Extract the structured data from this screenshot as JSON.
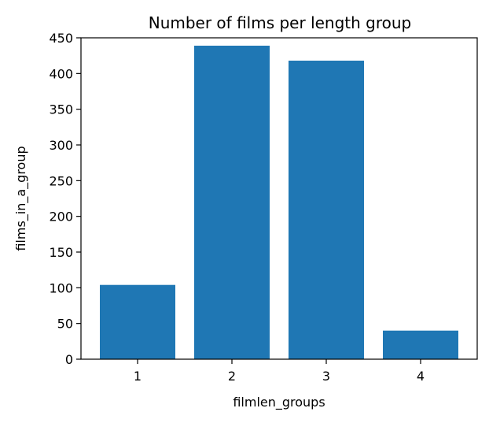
{
  "chart_data": {
    "type": "bar",
    "title": "Number of films per length group",
    "xlabel": "filmlen_groups",
    "ylabel": "films_in_a_group",
    "categories": [
      "1",
      "2",
      "3",
      "4"
    ],
    "values": [
      104,
      439,
      418,
      40
    ],
    "ylim": [
      0,
      450
    ],
    "yticks": [
      0,
      50,
      100,
      150,
      200,
      250,
      300,
      350,
      400,
      450
    ],
    "grid": false,
    "legend": "none",
    "bar_color": "#1f77b4"
  }
}
